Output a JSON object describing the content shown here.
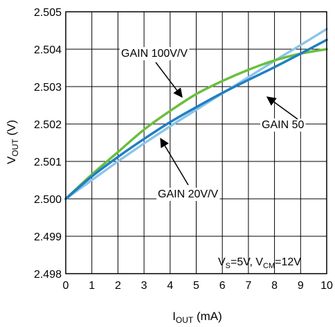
{
  "chart_data": {
    "type": "line",
    "xlabel": {
      "main": "I",
      "sub": "OUT",
      "unit": " (mA)"
    },
    "ylabel": {
      "main": "V",
      "sub": "OUT",
      "unit": " (V)"
    },
    "xlim": [
      0,
      10
    ],
    "ylim": [
      2.498,
      2.505
    ],
    "xticks": [
      "0",
      "1",
      "2",
      "3",
      "4",
      "5",
      "6",
      "7",
      "8",
      "9",
      "10"
    ],
    "yticks": [
      "2.498",
      "2.499",
      "2.500",
      "2.501",
      "2.502",
      "2.503",
      "2.504",
      "2.505"
    ],
    "grid": true,
    "conditions": {
      "vs_main": "V",
      "vs_sub": "S",
      "vs_val": "=5V, ",
      "vcm_main": "V",
      "vcm_sub": "CM",
      "vcm_val": "=12V"
    },
    "colors": {
      "gain100": "#6abf3d",
      "gain50": "#1f7fc4",
      "gain20": "#8dc4e8"
    },
    "series": [
      {
        "name": "GAIN 100V/V",
        "color": "#6abf3d",
        "x": [
          0,
          1,
          2,
          3,
          4,
          5,
          6,
          7,
          8,
          9,
          10
        ],
        "y": [
          2.5,
          2.50065,
          2.50125,
          2.50185,
          2.50235,
          2.5028,
          2.50315,
          2.50345,
          2.5037,
          2.50388,
          2.504
        ]
      },
      {
        "name": "GAIN 50",
        "color": "#1f7fc4",
        "x": [
          0,
          1,
          2,
          3,
          4,
          5,
          6,
          7,
          8,
          9,
          10
        ],
        "y": [
          2.5,
          2.5006,
          2.50112,
          2.5016,
          2.50205,
          2.50245,
          2.50283,
          2.50318,
          2.50352,
          2.50388,
          2.50425
        ]
      },
      {
        "name": "GAIN 20V/V",
        "color": "#8dc4e8",
        "x": [
          0,
          1,
          2,
          3,
          4,
          5,
          6,
          7,
          8,
          9,
          10
        ],
        "y": [
          2.5,
          2.5005,
          2.501,
          2.50148,
          2.50194,
          2.50238,
          2.50282,
          2.50325,
          2.50369,
          2.50411,
          2.50454
        ]
      }
    ],
    "annotations": [
      {
        "text": "GAIN 100V/V",
        "series": "GAIN 100V/V"
      },
      {
        "text": "GAIN 50",
        "series": "GAIN 50"
      },
      {
        "text": "GAIN 20V/V",
        "series": "GAIN 20V/V"
      }
    ]
  }
}
